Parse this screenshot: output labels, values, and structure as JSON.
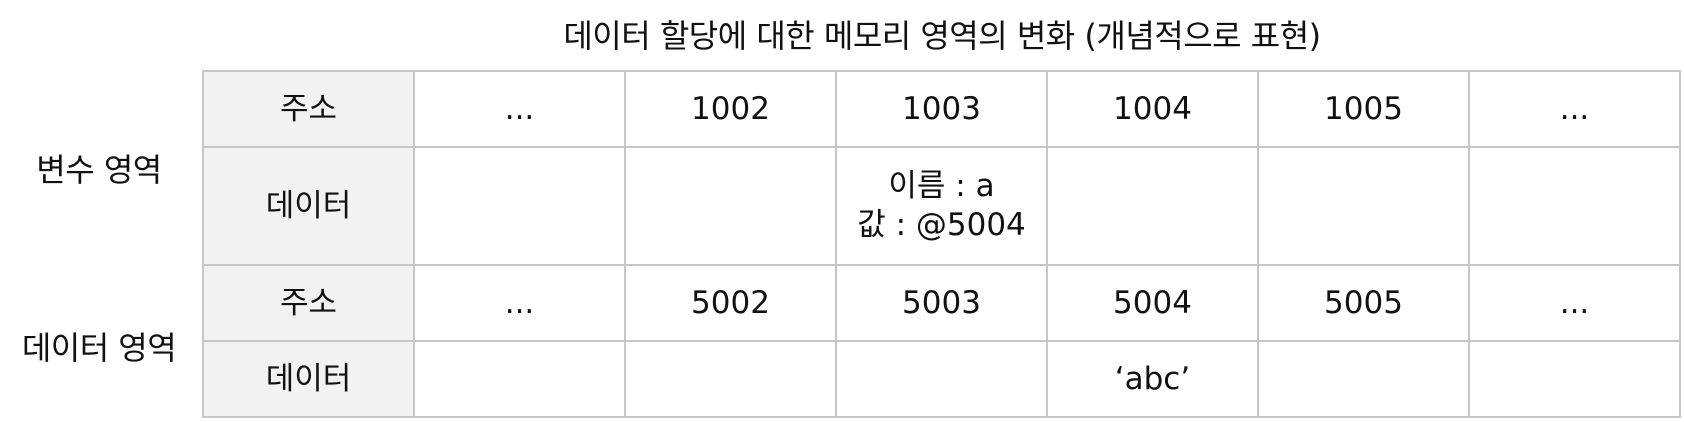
{
  "title": "데이터 할당에 대한 메모리 영역의 변화 (개념적으로 표현)",
  "sections": {
    "variable_area": "변수 영역",
    "data_area": "데이터 영역"
  },
  "headers": {
    "address": "주소",
    "data": "데이터"
  },
  "variable_area": {
    "addresses": [
      "...",
      "1002",
      "1003",
      "1004",
      "1005",
      "..."
    ],
    "data": [
      "",
      "",
      "",
      "",
      "",
      ""
    ],
    "variable_cell": {
      "name_line": "이름 : a",
      "value_line": "값 : @5004"
    }
  },
  "data_area": {
    "addresses": [
      "...",
      "5002",
      "5003",
      "5004",
      "5005",
      "..."
    ],
    "data": [
      "",
      "",
      "",
      "‘abc’",
      "",
      ""
    ]
  }
}
